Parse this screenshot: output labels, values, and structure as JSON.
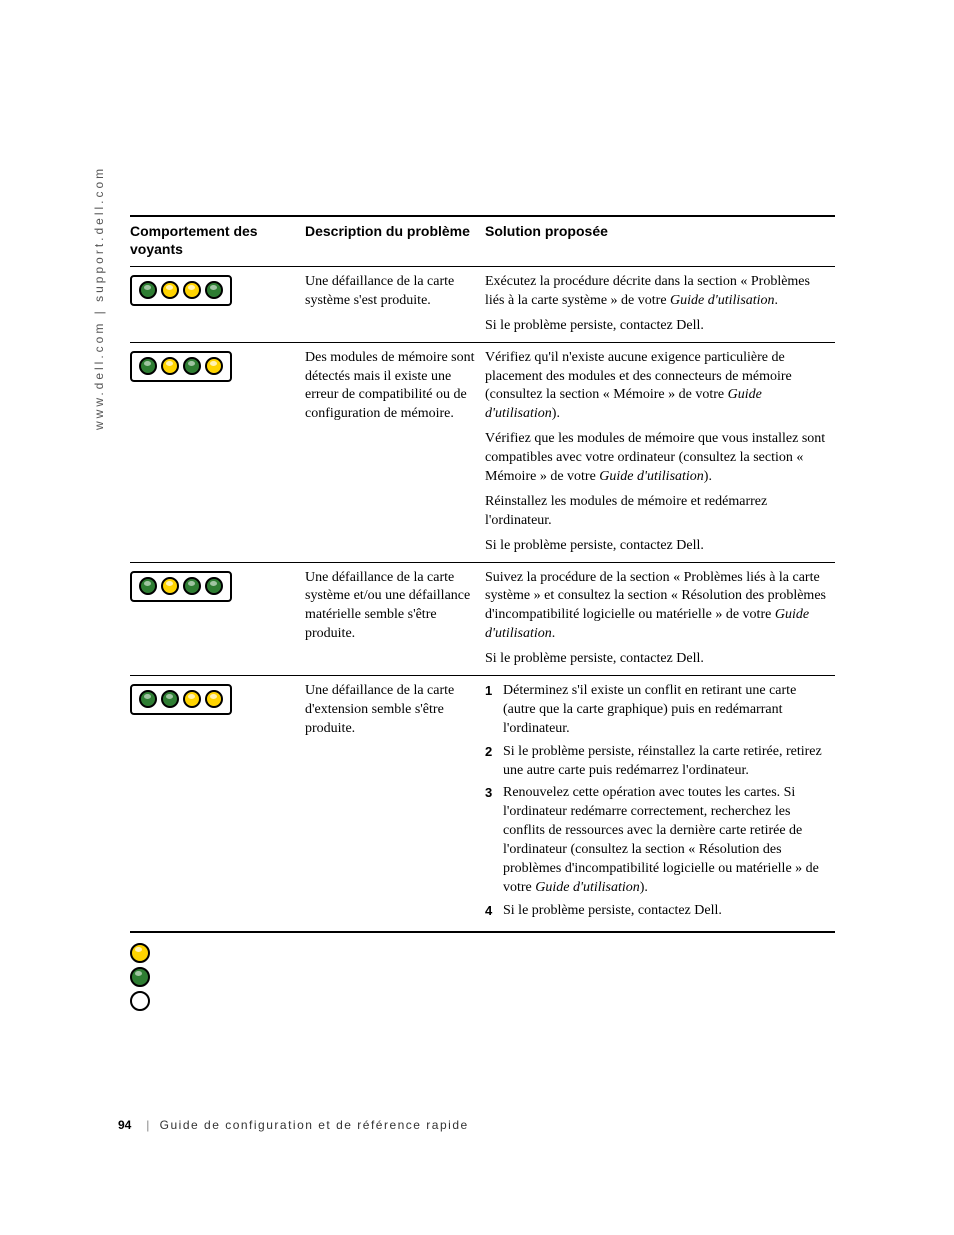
{
  "side_label": "www.dell.com | support.dell.com",
  "headers": {
    "col1": "Comportement des voyants",
    "col2": "Description du problème",
    "col3": "Solution proposée"
  },
  "led_colors": {
    "green": "#2e7d32",
    "yellow": "#ffd400",
    "off": "#ffffff",
    "border": "#000000"
  },
  "rows": [
    {
      "pattern": [
        "green",
        "yellow",
        "yellow",
        "green"
      ],
      "desc": "Une défaillance de la carte système s'est produite.",
      "solutions": [
        {
          "type": "para",
          "text_pre": "Exécutez la procédure décrite dans la section « Problèmes liés à la carte système » de votre ",
          "guide": "Guide d'utilisation",
          "text_post": "."
        },
        {
          "type": "para",
          "text_pre": "Si le problème persiste, contactez Dell.",
          "guide": "",
          "text_post": ""
        }
      ]
    },
    {
      "pattern": [
        "green",
        "yellow",
        "green",
        "yellow"
      ],
      "desc": "Des modules de mémoire sont détectés mais il existe une erreur de compatibilité ou de configuration de mémoire.",
      "solutions": [
        {
          "type": "para",
          "text_pre": "Vérifiez qu'il n'existe aucune exigence particulière de placement des modules et des connecteurs de mémoire (consultez la section « Mémoire » de votre ",
          "guide": "Guide d'utilisation",
          "text_post": ")."
        },
        {
          "type": "para",
          "text_pre": "Vérifiez que les modules de mémoire que vous installez sont compatibles avec votre ordinateur (consultez la section « Mémoire » de votre ",
          "guide": "Guide d'utilisation",
          "text_post": ")."
        },
        {
          "type": "para",
          "text_pre": "Réinstallez les modules de mémoire et redémarrez l'ordinateur.",
          "guide": "",
          "text_post": ""
        },
        {
          "type": "para",
          "text_pre": "Si le problème persiste, contactez Dell.",
          "guide": "",
          "text_post": ""
        }
      ]
    },
    {
      "pattern": [
        "green",
        "yellow",
        "green",
        "green"
      ],
      "desc": "Une défaillance de la carte système et/ou une défaillance matérielle semble s'être produite.",
      "solutions": [
        {
          "type": "para",
          "text_pre": "Suivez la procédure de la section « Problèmes liés à la carte système » et consultez la section « Résolution des problèmes d'incompatibilité logicielle ou matérielle » de votre ",
          "guide": "Guide d'utilisation",
          "text_post": "."
        },
        {
          "type": "para",
          "text_pre": "Si le problème persiste, contactez Dell.",
          "guide": "",
          "text_post": ""
        }
      ]
    },
    {
      "pattern": [
        "green",
        "green",
        "yellow",
        "yellow"
      ],
      "desc": "Une défaillance de la carte d'extension semble s'être produite.",
      "solutions": [
        {
          "type": "step",
          "num": "1",
          "text_pre": "Déterminez s'il existe un conflit en retirant une carte (autre que la carte graphique) puis en redémarrant l'ordinateur.",
          "guide": "",
          "text_post": ""
        },
        {
          "type": "step",
          "num": "2",
          "text_pre": "Si le problème persiste, réinstallez la carte retirée, retirez une autre carte puis redémarrez l'ordinateur.",
          "guide": "",
          "text_post": ""
        },
        {
          "type": "step",
          "num": "3",
          "text_pre": "Renouvelez cette opération avec toutes les cartes. Si l'ordinateur redémarre correctement, recherchez les conflits de ressources avec la dernière carte retirée de l'ordinateur (consultez la section « Résolution des problèmes d'incompatibilité logicielle ou matérielle » de votre ",
          "guide": "Guide d'utilisation",
          "text_post": ")."
        },
        {
          "type": "step",
          "num": "4",
          "text_pre": "Si le problème persiste, contactez Dell.",
          "guide": "",
          "text_post": ""
        }
      ]
    }
  ],
  "legend_leds": [
    "yellow",
    "green",
    "off"
  ],
  "footer": {
    "page": "94",
    "title": "Guide de configuration et de référence rapide"
  }
}
